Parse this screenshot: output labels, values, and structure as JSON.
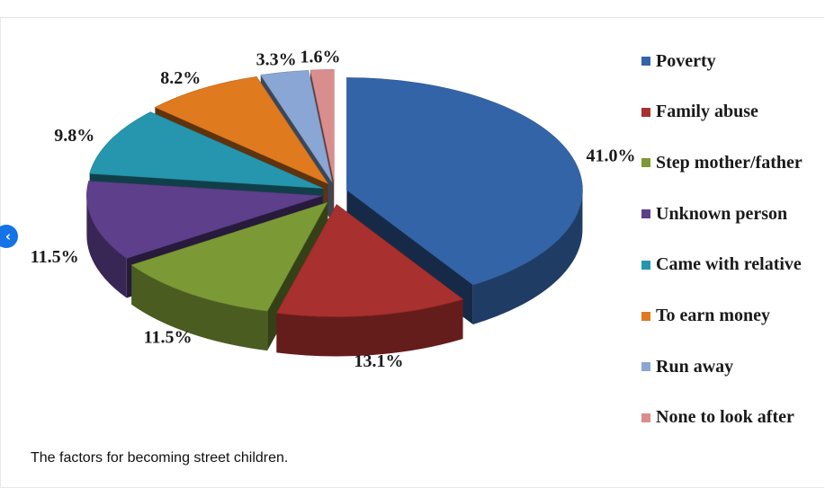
{
  "caption": "The factors for becoming street children.",
  "nav": {
    "icon": "chevron-left-icon",
    "glyph": "‹"
  },
  "chart_data": {
    "type": "pie",
    "style": "3d-exploded",
    "categories": [
      "Poverty",
      "Family abuse",
      "Step mother/father",
      "Unknown person",
      "Came with relative",
      "To earn money",
      "Run away",
      "None to look after"
    ],
    "values": [
      41.0,
      13.1,
      11.5,
      11.5,
      9.8,
      8.2,
      3.3,
      1.6
    ],
    "value_labels": [
      "41.0%",
      "13.1%",
      "11.5%",
      "11.5%",
      "9.8%",
      "8.2%",
      "3.3%",
      "1.6%"
    ],
    "colors": [
      "#3464a8",
      "#a8302e",
      "#7b9a35",
      "#5e3f8c",
      "#2596ae",
      "#e07a1f",
      "#8aa6d4",
      "#d98e8d"
    ],
    "legend_position": "right"
  }
}
